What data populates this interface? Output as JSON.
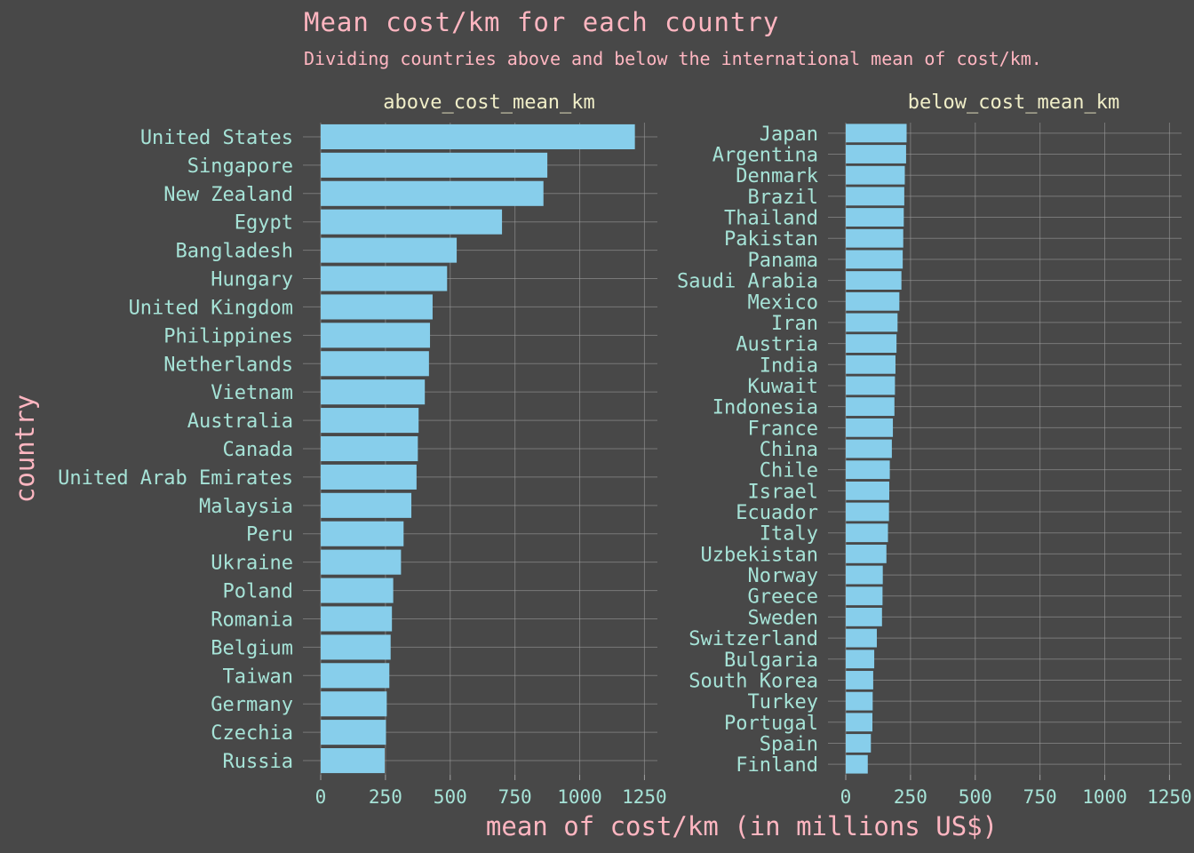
{
  "title": "Mean cost/km for each country",
  "subtitle": "Dividing countries above and below the international mean of cost/km.",
  "colors": {
    "background": "#484848",
    "bar": "#87ceeb",
    "grid": "#a0a0a0",
    "label": "#a6e3d7",
    "title": "#ffb6c1",
    "facet": "#f0eec8"
  },
  "chart_data": {
    "type": "bar",
    "orientation": "horizontal",
    "title": "Mean cost/km for each country",
    "subtitle": "Dividing countries above and below the international mean of cost/km.",
    "xlabel": "mean of cost/km (in millions US$)",
    "ylabel": "country",
    "xlim": [
      0,
      1300
    ],
    "xticks": [
      0,
      250,
      500,
      750,
      1000,
      1250
    ],
    "grid": true,
    "facets": [
      {
        "name": "above_cost_mean_km",
        "categories": [
          "United States",
          "Singapore",
          "New Zealand",
          "Egypt",
          "Bangladesh",
          "Hungary",
          "United Kingdom",
          "Philippines",
          "Netherlands",
          "Vietnam",
          "Australia",
          "Canada",
          "United Arab Emirates",
          "Malaysia",
          "Peru",
          "Ukraine",
          "Poland",
          "Romania",
          "Belgium",
          "Taiwan",
          "Germany",
          "Czechia",
          "Russia"
        ],
        "values": [
          1213,
          875,
          860,
          700,
          525,
          488,
          432,
          422,
          418,
          402,
          378,
          375,
          370,
          350,
          320,
          310,
          280,
          275,
          270,
          265,
          255,
          252,
          247
        ]
      },
      {
        "name": "below_cost_mean_km",
        "categories": [
          "Japan",
          "Argentina",
          "Denmark",
          "Brazil",
          "Thailand",
          "Pakistan",
          "Panama",
          "Saudi Arabia",
          "Mexico",
          "Iran",
          "Austria",
          "India",
          "Kuwait",
          "Indonesia",
          "France",
          "China",
          "Chile",
          "Israel",
          "Ecuador",
          "Italy",
          "Uzbekistan",
          "Norway",
          "Greece",
          "Sweden",
          "Switzerland",
          "Bulgaria",
          "South Korea",
          "Turkey",
          "Portugal",
          "Spain",
          "Finland"
        ],
        "values": [
          235,
          233,
          228,
          226,
          224,
          222,
          220,
          215,
          207,
          200,
          196,
          192,
          190,
          188,
          182,
          178,
          170,
          168,
          167,
          163,
          157,
          143,
          142,
          140,
          120,
          110,
          106,
          104,
          103,
          97,
          85
        ]
      }
    ]
  }
}
